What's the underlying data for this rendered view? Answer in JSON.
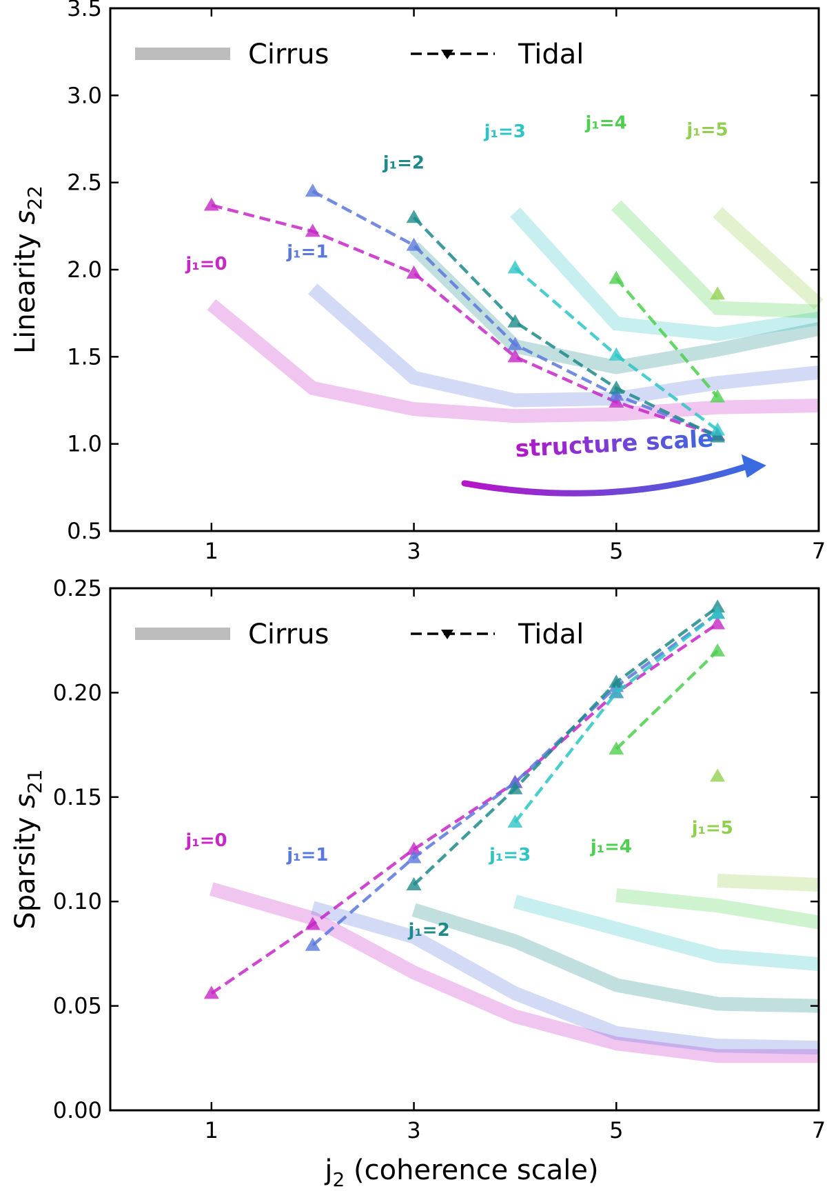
{
  "figure": {
    "xlabel_prefix": "j",
    "xlabel_sub": "2",
    "xlabel_rest": " (coherence scale)",
    "legend": {
      "cirrus": "Cirrus",
      "tidal": "Tidal"
    }
  },
  "colors": {
    "j1_0": "#c627c6",
    "j1_1": "#5a78dc",
    "j1_2": "#1f8a8a",
    "j1_3": "#2fc4c4",
    "j1_4": "#4fcf4f",
    "j1_5": "#92cf4f",
    "legend_cirrus": "#bdbdbd",
    "arrow_start": "#b515c8",
    "arrow_end": "#3a6ae0"
  },
  "chart_data": [
    {
      "type": "line",
      "id": "top",
      "ylabel": "Linearity",
      "ylabel_symbol": "s",
      "ylabel_sub": "22",
      "xlim": [
        0,
        7
      ],
      "ylim": [
        0.5,
        3.5
      ],
      "xticks": [
        1,
        3,
        5,
        7
      ],
      "yticks": [
        "0.5",
        "1.0",
        "1.5",
        "2.0",
        "2.5",
        "3.0",
        "3.5"
      ],
      "annotation": "structure scale",
      "labels": [
        {
          "text": "j₁=0",
          "color": "j1_0",
          "x": 0.95,
          "y": 2.0
        },
        {
          "text": "j₁=1",
          "color": "j1_1",
          "x": 1.95,
          "y": 2.07
        },
        {
          "text": "j₁=2",
          "color": "j1_2",
          "x": 2.9,
          "y": 2.58
        },
        {
          "text": "j₁=3",
          "color": "j1_3",
          "x": 3.9,
          "y": 2.76
        },
        {
          "text": "j₁=4",
          "color": "j1_4",
          "x": 4.9,
          "y": 2.81
        },
        {
          "text": "j₁=5",
          "color": "j1_5",
          "x": 5.9,
          "y": 2.77
        }
      ],
      "cirrus": [
        {
          "name": "j1=0",
          "color": "j1_0",
          "x": [
            1,
            2,
            3,
            4,
            5,
            6,
            7
          ],
          "y": [
            1.8,
            1.32,
            1.2,
            1.16,
            1.17,
            1.21,
            1.22
          ]
        },
        {
          "name": "j1=1",
          "color": "j1_1",
          "x": [
            2,
            3,
            4,
            5,
            6,
            7
          ],
          "y": [
            1.89,
            1.38,
            1.25,
            1.26,
            1.35,
            1.41
          ]
        },
        {
          "name": "j1=2",
          "color": "j1_2",
          "x": [
            3,
            4,
            5,
            6,
            7
          ],
          "y": [
            2.13,
            1.56,
            1.44,
            1.54,
            1.66
          ]
        },
        {
          "name": "j1=3",
          "color": "j1_3",
          "x": [
            4,
            5,
            6,
            7
          ],
          "y": [
            2.33,
            1.69,
            1.63,
            1.72
          ]
        },
        {
          "name": "j1=4",
          "color": "j1_4",
          "x": [
            5,
            6,
            7
          ],
          "y": [
            2.37,
            1.78,
            1.76
          ]
        },
        {
          "name": "j1=5",
          "color": "j1_5",
          "x": [
            6,
            7
          ],
          "y": [
            2.33,
            1.8
          ]
        }
      ],
      "tidal": [
        {
          "name": "j1=0",
          "color": "j1_0",
          "x": [
            1,
            2,
            3,
            4,
            5,
            6
          ],
          "y": [
            2.37,
            2.22,
            1.98,
            1.5,
            1.24,
            1.05
          ]
        },
        {
          "name": "j1=1",
          "color": "j1_1",
          "x": [
            2,
            3,
            4,
            5,
            6
          ],
          "y": [
            2.45,
            2.14,
            1.57,
            1.28,
            1.05
          ]
        },
        {
          "name": "j1=2",
          "color": "j1_2",
          "x": [
            3,
            4,
            5,
            6
          ],
          "y": [
            2.3,
            1.7,
            1.32,
            1.04
          ]
        },
        {
          "name": "j1=3",
          "color": "j1_3",
          "x": [
            4,
            5,
            6
          ],
          "y": [
            2.01,
            1.51,
            1.08
          ]
        },
        {
          "name": "j1=4",
          "color": "j1_4",
          "x": [
            5,
            6
          ],
          "y": [
            1.95,
            1.27
          ]
        },
        {
          "name": "j1=5",
          "color": "j1_5",
          "x": [
            6
          ],
          "y": [
            1.86
          ]
        }
      ]
    },
    {
      "type": "line",
      "id": "bottom",
      "ylabel": "Sparsity",
      "ylabel_symbol": "s",
      "ylabel_sub": "21",
      "xlim": [
        0,
        7
      ],
      "ylim": [
        0.0,
        0.25
      ],
      "xticks": [
        1,
        3,
        5,
        7
      ],
      "yticks": [
        "0.00",
        "0.05",
        "0.10",
        "0.15",
        "0.20",
        "0.25"
      ],
      "labels": [
        {
          "text": "j₁=0",
          "color": "j1_0",
          "x": 0.95,
          "y": 0.1265
        },
        {
          "text": "j₁=1",
          "color": "j1_1",
          "x": 1.95,
          "y": 0.1195
        },
        {
          "text": "j₁=2",
          "color": "j1_2",
          "x": 3.15,
          "y": 0.0835
        },
        {
          "text": "j₁=3",
          "color": "j1_3",
          "x": 3.95,
          "y": 0.1195
        },
        {
          "text": "j₁=4",
          "color": "j1_4",
          "x": 4.95,
          "y": 0.1235
        },
        {
          "text": "j₁=5",
          "color": "j1_5",
          "x": 5.95,
          "y": 0.1325
        }
      ],
      "cirrus": [
        {
          "name": "j1=0",
          "color": "j1_0",
          "x": [
            1,
            2,
            3,
            4,
            5,
            6,
            7
          ],
          "y": [
            0.106,
            0.092,
            0.066,
            0.045,
            0.032,
            0.026,
            0.026
          ]
        },
        {
          "name": "j1=1",
          "color": "j1_1",
          "x": [
            2,
            3,
            4,
            5,
            6,
            7
          ],
          "y": [
            0.097,
            0.083,
            0.056,
            0.037,
            0.031,
            0.03
          ]
        },
        {
          "name": "j1=2",
          "color": "j1_2",
          "x": [
            3,
            4,
            5,
            6,
            7
          ],
          "y": [
            0.096,
            0.081,
            0.06,
            0.051,
            0.05
          ]
        },
        {
          "name": "j1=3",
          "color": "j1_3",
          "x": [
            4,
            5,
            6,
            7
          ],
          "y": [
            0.1,
            0.087,
            0.074,
            0.07
          ]
        },
        {
          "name": "j1=4",
          "color": "j1_4",
          "x": [
            5,
            6,
            7
          ],
          "y": [
            0.103,
            0.098,
            0.09
          ]
        },
        {
          "name": "j1=5",
          "color": "j1_5",
          "x": [
            6,
            7
          ],
          "y": [
            0.11,
            0.108
          ]
        }
      ],
      "tidal": [
        {
          "name": "j1=0",
          "color": "j1_0",
          "x": [
            1,
            2,
            3,
            4,
            5,
            6
          ],
          "y": [
            0.056,
            0.089,
            0.125,
            0.157,
            0.2,
            0.233
          ]
        },
        {
          "name": "j1=1",
          "color": "j1_1",
          "x": [
            2,
            3,
            4,
            5,
            6
          ],
          "y": [
            0.079,
            0.121,
            0.157,
            0.203,
            0.238
          ]
        },
        {
          "name": "j1=2",
          "color": "j1_2",
          "x": [
            3,
            4,
            5,
            6
          ],
          "y": [
            0.108,
            0.154,
            0.205,
            0.241
          ]
        },
        {
          "name": "j1=3",
          "color": "j1_3",
          "x": [
            4,
            5,
            6
          ],
          "y": [
            0.138,
            0.2,
            0.238
          ]
        },
        {
          "name": "j1=4",
          "color": "j1_4",
          "x": [
            5,
            6
          ],
          "y": [
            0.173,
            0.22
          ]
        },
        {
          "name": "j1=5",
          "color": "j1_5",
          "x": [
            6
          ],
          "y": [
            0.16
          ]
        }
      ]
    }
  ]
}
